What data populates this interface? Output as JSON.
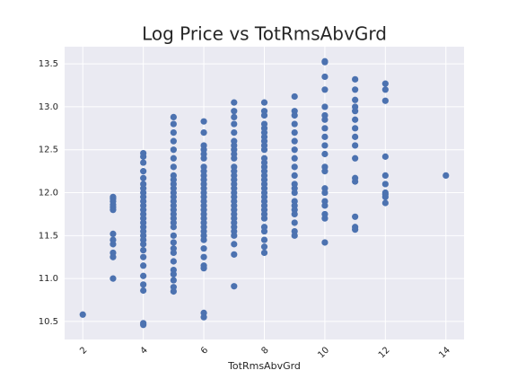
{
  "chart_data": {
    "type": "scatter",
    "title": "Log Price vs TotRmsAbvGrd",
    "xlabel": "TotRmsAbvGrd",
    "color": "#4c72b0",
    "x": [
      2,
      3,
      3,
      3,
      3,
      3,
      3,
      3,
      3,
      3,
      3,
      3,
      3,
      4,
      4,
      4,
      4,
      4,
      4,
      4,
      4,
      4,
      4,
      4,
      4,
      4,
      4,
      4,
      4,
      4,
      4,
      4,
      4,
      4,
      4,
      4,
      4,
      4,
      4,
      4,
      4,
      5,
      5,
      5,
      5,
      5,
      5,
      5,
      5,
      5,
      5,
      5,
      5,
      5,
      5,
      5,
      5,
      5,
      5,
      5,
      5,
      5,
      5,
      5,
      5,
      5,
      5,
      5,
      5,
      5,
      5,
      6,
      6,
      6,
      6,
      6,
      6,
      6,
      6,
      6,
      6,
      6,
      6,
      6,
      6,
      6,
      6,
      6,
      6,
      6,
      6,
      6,
      6,
      6,
      6,
      6,
      6,
      6,
      6,
      6,
      6,
      7,
      7,
      7,
      7,
      7,
      7,
      7,
      7,
      7,
      7,
      7,
      7,
      7,
      7,
      7,
      7,
      7,
      7,
      7,
      7,
      7,
      7,
      7,
      7,
      7,
      7,
      7,
      7,
      7,
      7,
      8,
      8,
      8,
      8,
      8,
      8,
      8,
      8,
      8,
      8,
      8,
      8,
      8,
      8,
      8,
      8,
      8,
      8,
      8,
      8,
      8,
      8,
      8,
      8,
      8,
      8,
      8,
      8,
      8,
      8,
      9,
      9,
      9,
      9,
      9,
      9,
      9,
      9,
      9,
      9,
      9,
      9,
      9,
      9,
      9,
      9,
      9,
      9,
      9,
      9,
      10,
      10,
      10,
      10,
      10,
      10,
      10,
      10,
      10,
      10,
      10,
      10,
      10,
      10,
      10,
      10,
      10,
      10,
      10,
      10,
      11,
      11,
      11,
      11,
      11,
      11,
      11,
      11,
      11,
      11,
      11,
      11,
      11,
      11,
      11,
      12,
      12,
      12,
      12,
      12,
      12,
      12,
      12,
      12,
      12,
      14
    ],
    "y": [
      10.58,
      11.0,
      11.25,
      11.3,
      11.4,
      11.45,
      11.52,
      11.8,
      11.83,
      11.86,
      11.9,
      11.93,
      11.95,
      10.46,
      10.48,
      10.86,
      10.93,
      11.03,
      11.15,
      11.25,
      11.33,
      11.4,
      11.45,
      11.5,
      11.55,
      11.6,
      11.65,
      11.7,
      11.75,
      11.8,
      11.85,
      11.9,
      11.95,
      12.0,
      12.05,
      12.1,
      12.17,
      12.25,
      12.35,
      12.42,
      12.46,
      10.85,
      10.9,
      10.98,
      11.05,
      11.1,
      11.2,
      11.3,
      11.35,
      11.42,
      11.5,
      11.6,
      11.65,
      11.7,
      11.75,
      11.8,
      11.85,
      11.9,
      11.95,
      12.0,
      12.05,
      12.1,
      12.15,
      12.2,
      12.3,
      12.4,
      12.5,
      12.6,
      12.7,
      12.8,
      12.88,
      10.55,
      10.6,
      11.12,
      11.15,
      11.25,
      11.35,
      11.45,
      11.5,
      11.55,
      11.6,
      11.65,
      11.7,
      11.75,
      11.8,
      11.85,
      11.9,
      11.95,
      12.0,
      12.05,
      12.1,
      12.15,
      12.2,
      12.25,
      12.3,
      12.4,
      12.45,
      12.5,
      12.55,
      12.7,
      12.83,
      10.91,
      11.28,
      11.4,
      11.5,
      11.55,
      11.6,
      11.65,
      11.7,
      11.75,
      11.8,
      11.85,
      11.9,
      11.95,
      12.0,
      12.05,
      12.1,
      12.15,
      12.2,
      12.25,
      12.3,
      12.4,
      12.45,
      12.5,
      12.55,
      12.6,
      12.7,
      12.8,
      12.88,
      12.95,
      13.05,
      11.3,
      11.37,
      11.45,
      11.55,
      11.6,
      11.7,
      11.75,
      11.8,
      11.85,
      11.9,
      11.95,
      12.0,
      12.05,
      12.1,
      12.15,
      12.2,
      12.25,
      12.3,
      12.35,
      12.4,
      12.5,
      12.55,
      12.6,
      12.65,
      12.7,
      12.75,
      12.8,
      12.9,
      12.95,
      13.05,
      11.5,
      11.55,
      11.65,
      11.75,
      11.8,
      11.85,
      11.9,
      12.0,
      12.05,
      12.1,
      12.2,
      12.3,
      12.4,
      12.5,
      12.6,
      12.7,
      12.8,
      12.9,
      12.95,
      13.12,
      11.42,
      11.7,
      11.75,
      11.85,
      11.9,
      12.0,
      12.05,
      12.25,
      12.3,
      12.45,
      12.55,
      12.65,
      12.75,
      12.85,
      12.9,
      13.0,
      13.2,
      13.35,
      13.52,
      13.53,
      11.57,
      11.6,
      11.72,
      12.13,
      12.17,
      12.4,
      12.55,
      12.65,
      12.75,
      12.85,
      12.95,
      13.0,
      13.08,
      13.2,
      13.32,
      11.88,
      11.95,
      11.98,
      12.1,
      12.2,
      12.42,
      13.07,
      13.2,
      13.27,
      12.0,
      12.2
    ],
    "xlim": [
      1.4,
      14.6
    ],
    "xticks": [
      2,
      4,
      6,
      8,
      10,
      12,
      14
    ],
    "ylim": [
      10.29,
      13.7
    ],
    "yticks": [
      10.5,
      {
        "value": 11,
        "label": "11.0"
      },
      11.5,
      {
        "value": 12,
        "label": "12.0"
      },
      12.5,
      {
        "value": 13,
        "label": "13.0"
      },
      13.5
    ],
    "grid": true
  }
}
